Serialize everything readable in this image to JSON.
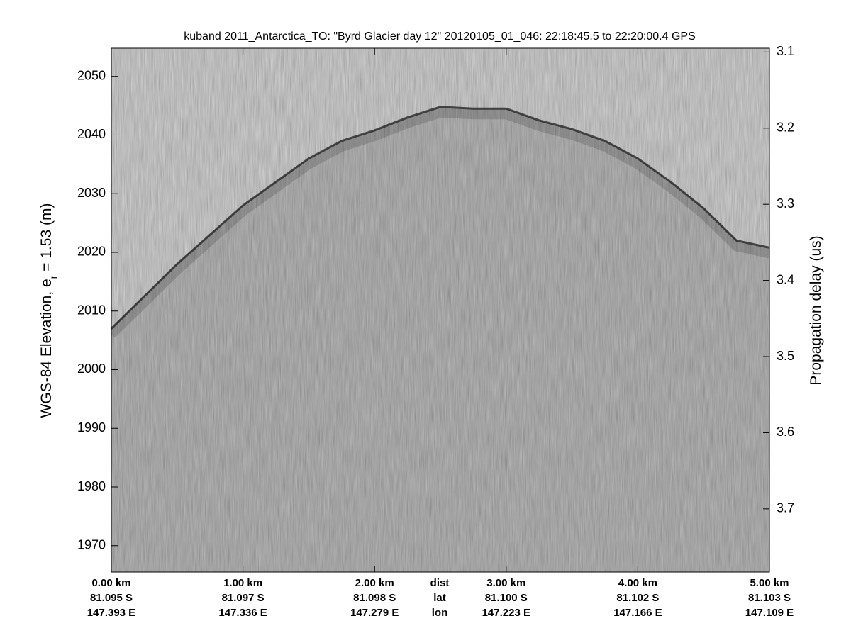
{
  "chart_data": {
    "type": "echogram",
    "title": "kuband 2011_Antarctica_TO: \"Byrd Glacier day 12\"  20120105_01_046: 22:18:45.5 to 22:20:00.4 GPS",
    "ylabel": {
      "text": "WGS-84 Elevation, e",
      "sub": "r",
      "rest": " = 1.53 (m)"
    },
    "y2label": "Propagation delay (us)",
    "xlim": [
      0,
      5
    ],
    "xticks": [
      {
        "value": 0,
        "label": "0.00 km"
      },
      {
        "value": 1,
        "label": "1.00 km"
      },
      {
        "value": 2,
        "label": "2.00 km"
      },
      {
        "value": 3,
        "label": "3.00 km"
      },
      {
        "value": 4,
        "label": "4.00 km"
      },
      {
        "value": 5,
        "label": "5.00 km"
      }
    ],
    "xtick_lat": [
      "81.095 S",
      "81.097 S",
      "81.098 S",
      "81.100 S",
      "81.102 S",
      "81.103 S"
    ],
    "xtick_lon": [
      "147.393 E",
      "147.336 E",
      "147.279 E",
      "147.223 E",
      "147.166 E",
      "147.109 E"
    ],
    "row_labels": [
      "dist",
      "lat",
      "lon"
    ],
    "ylim": [
      1965.5,
      2054.8
    ],
    "yticks": [
      1970,
      1980,
      1990,
      2000,
      2010,
      2020,
      2030,
      2040,
      2050
    ],
    "y2lim": [
      3.783,
      3.095
    ],
    "y2ticks": [
      3.1,
      3.2,
      3.3,
      3.4,
      3.5,
      3.6,
      3.7
    ],
    "x": [
      0,
      0.25,
      0.5,
      0.75,
      1,
      1.25,
      1.5,
      1.75,
      2,
      2.25,
      2.5,
      2.75,
      3,
      3.25,
      3.5,
      3.75,
      4,
      4.25,
      4.5,
      4.75,
      5
    ],
    "values": [
      2007,
      2012.5,
      2018,
      2023,
      2028,
      2032,
      2036,
      2039,
      2040.8,
      2043,
      2044.8,
      2044.5,
      2044.5,
      2042.5,
      2041,
      2039,
      2036,
      2032,
      2027.5,
      2022,
      2020.8
    ],
    "color": "#1e1e1e"
  }
}
